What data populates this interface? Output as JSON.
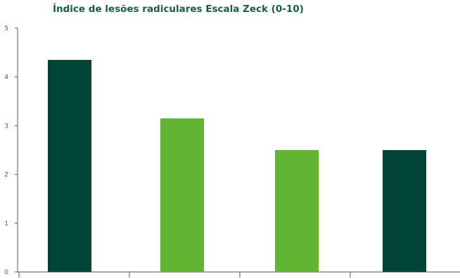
{
  "chart_data": {
    "type": "bar",
    "title": "Índice de lesões radiculares Escala Zeck (0-10)",
    "xlabel": "",
    "ylabel": "",
    "categories": [
      "",
      "",
      "",
      ""
    ],
    "values": [
      4.35,
      3.15,
      2.5,
      2.5
    ],
    "ylim": [
      0,
      5
    ],
    "yticks": [
      0,
      1,
      2,
      3,
      4,
      5
    ],
    "grid": false,
    "legend": "none",
    "colors": [
      "#00443a",
      "#62b532",
      "#62b532",
      "#00443a"
    ]
  }
}
